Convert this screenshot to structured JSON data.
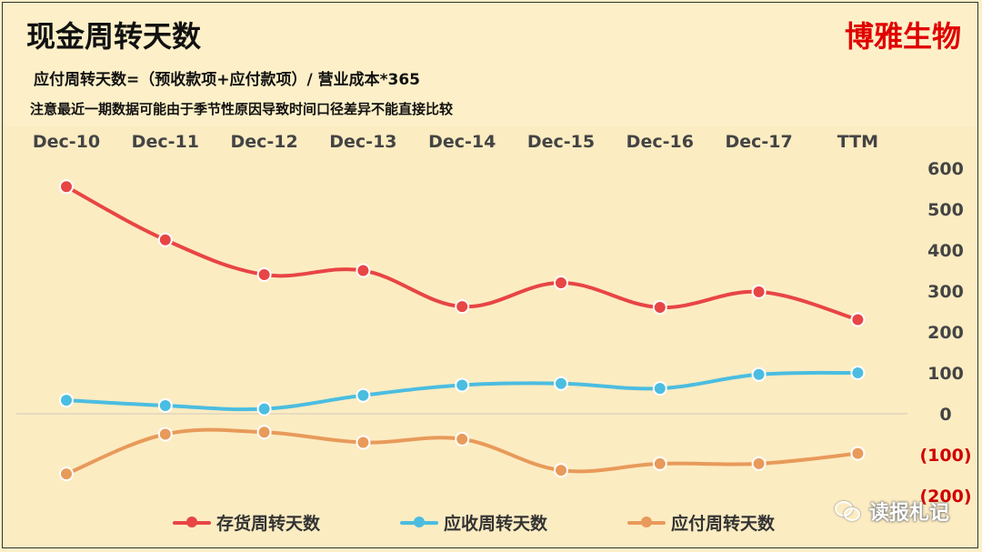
{
  "header": {
    "title": "现金周转天数",
    "brand": "博雅生物",
    "formula": "应付周转天数=（预收款项+应付款项）/  营业成本*365",
    "note": "注意最近一期数据可能由于季节性原因导致时间口径差异不能直接比较"
  },
  "watermark": {
    "text": "读报札记",
    "icon": "wechat-icon"
  },
  "chart_data": {
    "type": "line",
    "categories": [
      "Dec-10",
      "Dec-11",
      "Dec-12",
      "Dec-13",
      "Dec-14",
      "Dec-15",
      "Dec-16",
      "Dec-17",
      "TTM"
    ],
    "ylim": [
      -200,
      600
    ],
    "yticks": [
      600,
      500,
      400,
      300,
      200,
      100,
      0,
      -100,
      -200
    ],
    "ytick_labels": [
      "600",
      "500",
      "400",
      "300",
      "200",
      "100",
      "0",
      "(100)",
      "(200)"
    ],
    "negative_tick_color": "#d00000",
    "xaxis_position": "top",
    "yaxis_position": "right",
    "grid": false,
    "legend_position": "bottom",
    "smooth": true,
    "series": [
      {
        "name": "存货周转天数",
        "color": "#e84545",
        "values": [
          555,
          425,
          340,
          350,
          262,
          320,
          260,
          298,
          230
        ]
      },
      {
        "name": "应收周转天数",
        "color": "#4bbde0",
        "values": [
          33,
          20,
          12,
          45,
          70,
          74,
          62,
          96,
          100
        ]
      },
      {
        "name": "应付周转天数",
        "color": "#e89a5a",
        "values": [
          -147,
          -50,
          -45,
          -70,
          -62,
          -138,
          -122,
          -122,
          -97
        ]
      }
    ]
  }
}
